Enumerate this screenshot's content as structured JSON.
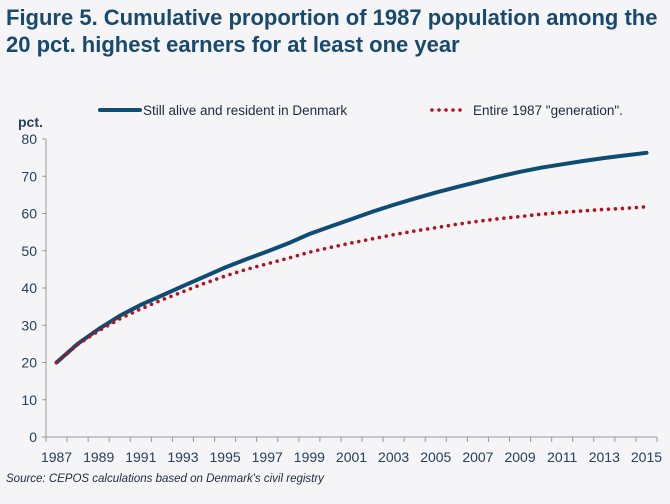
{
  "chart_data": {
    "type": "line",
    "title": "Figure 5. Cumulative proportion of 1987 population among the 20 pct. highest earners for at least one year",
    "ylabel": "pct.",
    "xlabel": "",
    "ylim": [
      0,
      80
    ],
    "yticks": [
      "0",
      "10",
      "20",
      "30",
      "40",
      "50",
      "60",
      "70",
      "80"
    ],
    "xtick_labels": [
      "1987",
      "1989",
      "1991",
      "1993",
      "1995",
      "1997",
      "1999",
      "2001",
      "2003",
      "2005",
      "2007",
      "2009",
      "2011",
      "2013",
      "2015"
    ],
    "x": [
      1987,
      1988,
      1989,
      1990,
      1991,
      1992,
      1993,
      1994,
      1995,
      1996,
      1997,
      1998,
      1999,
      2000,
      2001,
      2002,
      2003,
      2004,
      2005,
      2006,
      2007,
      2008,
      2009,
      2010,
      2011,
      2012,
      2013,
      2014,
      2015
    ],
    "grid": false,
    "legend_position": "top",
    "series": [
      {
        "name": "Still alive and resident in Denmark",
        "color": "#0f4c73",
        "style": "solid",
        "values": [
          20,
          25,
          29,
          32.5,
          35.5,
          38,
          40.5,
          43,
          45.5,
          47.7,
          49.8,
          52,
          54.5,
          56.5,
          58.5,
          60.5,
          62.3,
          64,
          65.6,
          67.1,
          68.5,
          69.9,
          71.2,
          72.3,
          73.2,
          74.1,
          74.9,
          75.6,
          76.3
        ]
      },
      {
        "name": "Entire 1987 \"generation\".",
        "color": "#b4121b",
        "style": "dotted",
        "values": [
          20,
          24.8,
          28.5,
          31.7,
          34.4,
          36.8,
          39,
          41.2,
          43.2,
          45,
          46.5,
          48,
          49.6,
          50.9,
          52.1,
          53.2,
          54.3,
          55.3,
          56.2,
          57.1,
          57.9,
          58.6,
          59.2,
          59.8,
          60.3,
          60.7,
          61.1,
          61.4,
          61.8
        ]
      }
    ]
  },
  "source": "Source: CEPOS calculations based on Denmark's civil registry"
}
